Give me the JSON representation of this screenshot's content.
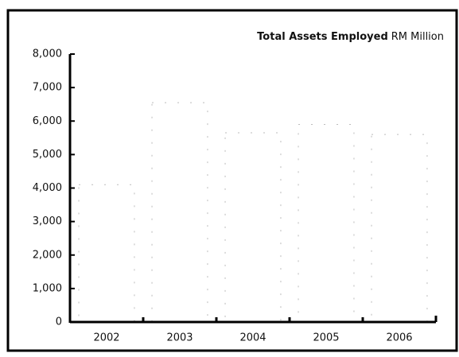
{
  "chart_data": {
    "type": "bar",
    "title": "Total Assets Employed",
    "unit": "RM Million",
    "categories": [
      "2002",
      "2003",
      "2004",
      "2005",
      "2006"
    ],
    "values": [
      4100,
      6550,
      5650,
      5900,
      5600
    ],
    "color": "#ffffff",
    "ylim": [
      0,
      8000
    ],
    "yticks": [
      0,
      {
        "value": 1000,
        "label": "1,000"
      },
      {
        "value": 2000,
        "label": "2,000"
      },
      {
        "value": 3000,
        "label": "3,000"
      },
      {
        "value": 4000,
        "label": "4,000"
      },
      {
        "value": 5000,
        "label": "5,000"
      },
      {
        "value": 6000,
        "label": "6,000"
      },
      {
        "value": 7000,
        "label": "7,000"
      },
      {
        "value": 8000,
        "label": "8,000"
      }
    ],
    "grid": false
  }
}
